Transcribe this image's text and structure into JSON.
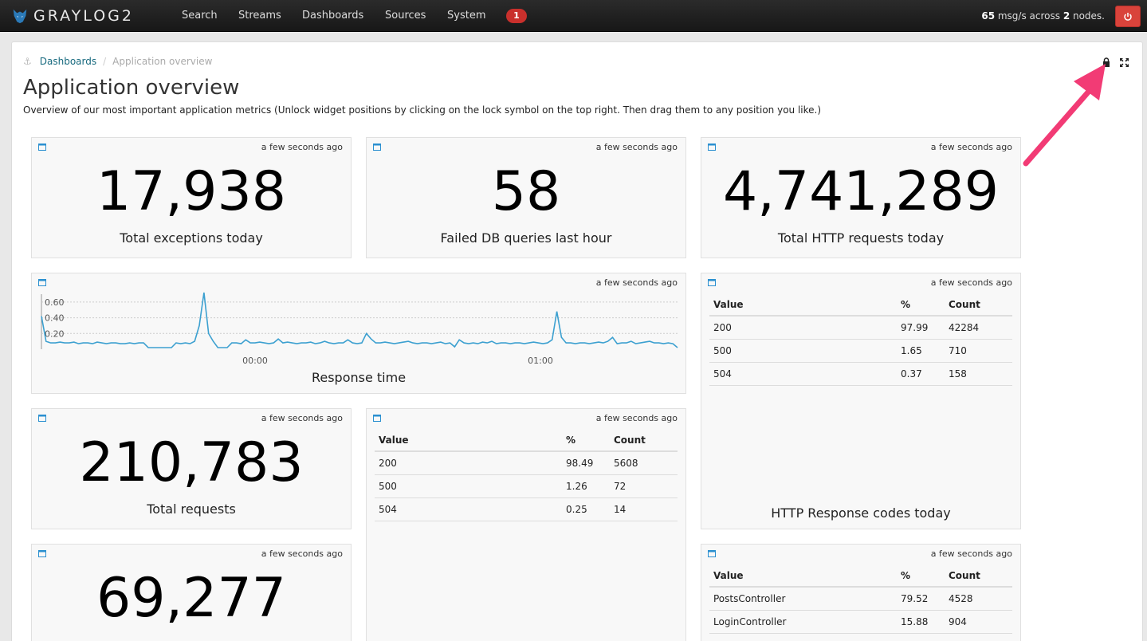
{
  "navbar": {
    "brand": "GRAYLOG2",
    "items": [
      "Search",
      "Streams",
      "Dashboards",
      "Sources",
      "System"
    ],
    "badge": "1",
    "throughput_value": "65",
    "throughput_mid": " msg/s across ",
    "nodes_value": "2",
    "throughput_end": " nodes."
  },
  "breadcrumb": {
    "link": "Dashboards",
    "separator": "/",
    "current": "Application overview"
  },
  "page": {
    "title": "Application overview",
    "description": "Overview of our most important application metrics (Unlock widget positions by clicking on the lock symbol on the top right. Then drag them to any position you like.)"
  },
  "widgets": {
    "timestamp": "a few seconds ago",
    "exceptions": {
      "value": "17,938",
      "label": "Total exceptions today"
    },
    "failed_db": {
      "value": "58",
      "label": "Failed DB queries last hour"
    },
    "http_requests": {
      "value": "4,741,289",
      "label": "Total HTTP requests today"
    },
    "response_time": {
      "label": "Response time"
    },
    "total_requests": {
      "value": "210,783",
      "label": "Total requests"
    },
    "fourth_count": {
      "value": "69,277"
    },
    "http_codes_today": {
      "label": "HTTP Response codes today",
      "headers": [
        "Value",
        "%",
        "Count"
      ],
      "rows": [
        [
          "200",
          "97.99",
          "42284"
        ],
        [
          "500",
          "1.65",
          "710"
        ],
        [
          "504",
          "0.37",
          "158"
        ]
      ]
    },
    "codes_mid": {
      "headers": [
        "Value",
        "%",
        "Count"
      ],
      "rows": [
        [
          "200",
          "98.49",
          "5608"
        ],
        [
          "500",
          "1.26",
          "72"
        ],
        [
          "504",
          "0.25",
          "14"
        ]
      ]
    },
    "controllers": {
      "headers": [
        "Value",
        "%",
        "Count"
      ],
      "rows": [
        [
          "PostsController",
          "79.52",
          "4528"
        ],
        [
          "LoginController",
          "15.88",
          "904"
        ]
      ]
    }
  },
  "chart_data": {
    "type": "line",
    "title": "Response time",
    "ylim": [
      0,
      0.7
    ],
    "yticks": [
      "0.60",
      "0.40",
      "0.20"
    ],
    "xticks": [
      "00:00",
      "01:00"
    ],
    "grid": true,
    "values": [
      0.42,
      0.1,
      0.08,
      0.08,
      0.09,
      0.08,
      0.08,
      0.09,
      0.07,
      0.08,
      0.08,
      0.07,
      0.09,
      0.08,
      0.07,
      0.08,
      0.08,
      0.07,
      0.07,
      0.08,
      0.07,
      0.08,
      0.08,
      0.02,
      0.02,
      0.02,
      0.02,
      0.02,
      0.02,
      0.08,
      0.07,
      0.08,
      0.07,
      0.1,
      0.3,
      0.72,
      0.2,
      0.1,
      0.02,
      0.02,
      0.02,
      0.08,
      0.08,
      0.07,
      0.12,
      0.08,
      0.08,
      0.09,
      0.08,
      0.07,
      0.08,
      0.13,
      0.08,
      0.09,
      0.08,
      0.07,
      0.08,
      0.08,
      0.09,
      0.07,
      0.08,
      0.1,
      0.08,
      0.07,
      0.08,
      0.08,
      0.12,
      0.08,
      0.07,
      0.08,
      0.2,
      0.13,
      0.08,
      0.08,
      0.09,
      0.08,
      0.07,
      0.08,
      0.09,
      0.1,
      0.08,
      0.07,
      0.08,
      0.08,
      0.07,
      0.08,
      0.09,
      0.07,
      0.08,
      0.03,
      0.12,
      0.08,
      0.07,
      0.08,
      0.07,
      0.09,
      0.08,
      0.1,
      0.07,
      0.08,
      0.08,
      0.07,
      0.08,
      0.08,
      0.07,
      0.08,
      0.09,
      0.08,
      0.07,
      0.08,
      0.12,
      0.48,
      0.15,
      0.08,
      0.08,
      0.07,
      0.08,
      0.08,
      0.07,
      0.08,
      0.09,
      0.08,
      0.1,
      0.15,
      0.07,
      0.08,
      0.08,
      0.1,
      0.07,
      0.08,
      0.09,
      0.1,
      0.08,
      0.08,
      0.07,
      0.08,
      0.07,
      0.02
    ],
    "color": "#3ca0d0"
  },
  "colors": {
    "accent": "#16697e",
    "badge": "#c9302c",
    "power": "#d9433b",
    "arrow": "#f23b75"
  }
}
